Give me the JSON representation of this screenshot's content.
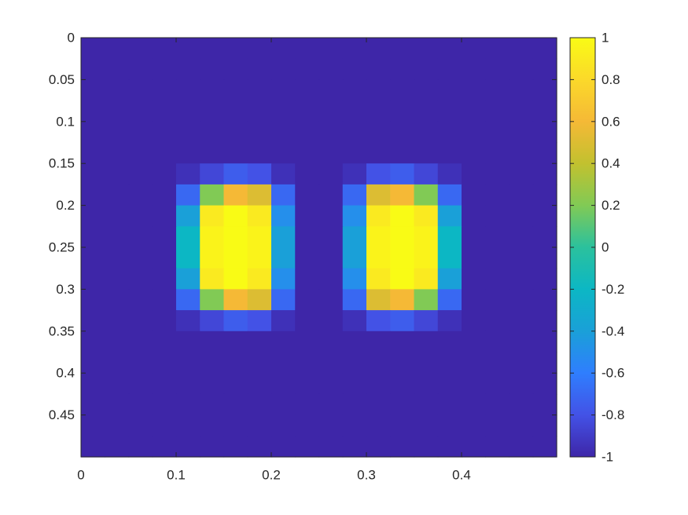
{
  "chart_data": {
    "type": "heatmap",
    "xlim": [
      0,
      0.5
    ],
    "ylim": [
      0,
      0.5
    ],
    "y_reversed": true,
    "xticks": [
      0,
      0.1,
      0.2,
      0.3,
      0.4
    ],
    "yticks": [
      0,
      0.05,
      0.1,
      0.15,
      0.2,
      0.25,
      0.3,
      0.35,
      0.4,
      0.45
    ],
    "clim": [
      -1,
      1
    ],
    "cticks": [
      -1,
      -0.8,
      -0.6,
      -0.4,
      -0.2,
      0,
      0.2,
      0.4,
      0.6,
      0.8,
      1
    ],
    "colormap": [
      "#3e26a8",
      "#4352e6",
      "#2f7efe",
      "#1aa0d8",
      "#0cb7c4",
      "#2bc19d",
      "#81ca55",
      "#c2c12f",
      "#f5b936",
      "#fbd92a",
      "#f9fb15"
    ],
    "z": [
      [
        -1,
        -1,
        -1,
        -1,
        -1,
        -1,
        -1,
        -1,
        -1,
        -1,
        -1,
        -1,
        -1,
        -1,
        -1,
        -1,
        -1,
        -1,
        -1,
        -1
      ],
      [
        -1,
        -1,
        -1,
        -1,
        -1,
        -1,
        -1,
        -1,
        -1,
        -1,
        -1,
        -1,
        -1,
        -1,
        -1,
        -1,
        -1,
        -1,
        -1,
        -1
      ],
      [
        -1,
        -1,
        -1,
        -1,
        -1,
        -1,
        -1,
        -1,
        -1,
        -1,
        -1,
        -1,
        -1,
        -1,
        -1,
        -1,
        -1,
        -1,
        -1,
        -1
      ],
      [
        -1,
        -1,
        -1,
        -1,
        -1,
        -1,
        -1,
        -1,
        -1,
        -1,
        -1,
        -1,
        -1,
        -1,
        -1,
        -1,
        -1,
        -1,
        -1,
        -1
      ],
      [
        -1,
        -1,
        -1,
        -1,
        -1,
        -1,
        -1,
        -1,
        -1,
        -1,
        -1,
        -1,
        -1,
        -1,
        -1,
        -1,
        -1,
        -1,
        -1,
        -1
      ],
      [
        -1,
        -1,
        -1,
        -1,
        -1,
        -1,
        -1,
        -1,
        -1,
        -1,
        -1,
        -1,
        -1,
        -1,
        -1,
        -1,
        -1,
        -1,
        -1,
        -1
      ],
      [
        -1,
        -1,
        -1,
        -1,
        -0.95,
        -0.85,
        -0.75,
        -0.8,
        -0.95,
        -1,
        -1,
        -0.95,
        -0.8,
        -0.75,
        -0.85,
        -0.95,
        -1,
        -1,
        -1,
        -1
      ],
      [
        -1,
        -1,
        -1,
        -1,
        -0.7,
        0.2,
        0.6,
        0.5,
        -0.7,
        -1,
        -1,
        -0.7,
        0.5,
        0.6,
        0.2,
        -0.7,
        -1,
        -1,
        -1,
        -1
      ],
      [
        -1,
        -1,
        -1,
        -1,
        -0.4,
        0.9,
        1,
        0.9,
        -0.5,
        -1,
        -1,
        -0.5,
        0.9,
        1,
        0.9,
        -0.4,
        -1,
        -1,
        -1,
        -1
      ],
      [
        -1,
        -1,
        -1,
        -1,
        -0.2,
        0.95,
        1,
        0.95,
        -0.4,
        -1,
        -1,
        -0.4,
        0.95,
        1,
        0.95,
        -0.2,
        -1,
        -1,
        -1,
        -1
      ],
      [
        -1,
        -1,
        -1,
        -1,
        -0.2,
        0.95,
        1,
        0.95,
        -0.4,
        -1,
        -1,
        -0.4,
        0.95,
        1,
        0.95,
        -0.2,
        -1,
        -1,
        -1,
        -1
      ],
      [
        -1,
        -1,
        -1,
        -1,
        -0.4,
        0.9,
        1,
        0.9,
        -0.5,
        -1,
        -1,
        -0.5,
        0.9,
        1,
        0.9,
        -0.4,
        -1,
        -1,
        -1,
        -1
      ],
      [
        -1,
        -1,
        -1,
        -1,
        -0.7,
        0.2,
        0.6,
        0.5,
        -0.7,
        -1,
        -1,
        -0.7,
        0.5,
        0.6,
        0.2,
        -0.7,
        -1,
        -1,
        -1,
        -1
      ],
      [
        -1,
        -1,
        -1,
        -1,
        -0.95,
        -0.85,
        -0.75,
        -0.8,
        -0.95,
        -1,
        -1,
        -0.95,
        -0.8,
        -0.75,
        -0.85,
        -0.95,
        -1,
        -1,
        -1,
        -1
      ],
      [
        -1,
        -1,
        -1,
        -1,
        -1,
        -1,
        -1,
        -1,
        -1,
        -1,
        -1,
        -1,
        -1,
        -1,
        -1,
        -1,
        -1,
        -1,
        -1,
        -1
      ],
      [
        -1,
        -1,
        -1,
        -1,
        -1,
        -1,
        -1,
        -1,
        -1,
        -1,
        -1,
        -1,
        -1,
        -1,
        -1,
        -1,
        -1,
        -1,
        -1,
        -1
      ],
      [
        -1,
        -1,
        -1,
        -1,
        -1,
        -1,
        -1,
        -1,
        -1,
        -1,
        -1,
        -1,
        -1,
        -1,
        -1,
        -1,
        -1,
        -1,
        -1,
        -1
      ],
      [
        -1,
        -1,
        -1,
        -1,
        -1,
        -1,
        -1,
        -1,
        -1,
        -1,
        -1,
        -1,
        -1,
        -1,
        -1,
        -1,
        -1,
        -1,
        -1,
        -1
      ],
      [
        -1,
        -1,
        -1,
        -1,
        -1,
        -1,
        -1,
        -1,
        -1,
        -1,
        -1,
        -1,
        -1,
        -1,
        -1,
        -1,
        -1,
        -1,
        -1,
        -1
      ],
      [
        -1,
        -1,
        -1,
        -1,
        -1,
        -1,
        -1,
        -1,
        -1,
        -1,
        -1,
        -1,
        -1,
        -1,
        -1,
        -1,
        -1,
        -1,
        -1,
        -1
      ]
    ]
  }
}
